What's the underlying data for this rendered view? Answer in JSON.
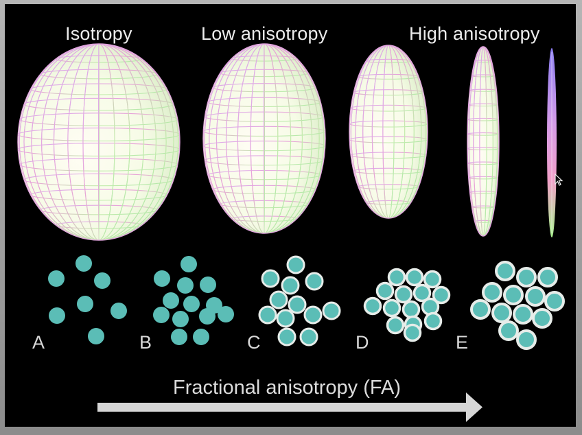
{
  "headings": {
    "isotropy": "Isotropy",
    "low": "Low anisotropy",
    "high": "High anisotropy"
  },
  "panels": [
    {
      "letter": "A"
    },
    {
      "letter": "B"
    },
    {
      "letter": "C"
    },
    {
      "letter": "D"
    },
    {
      "letter": "E"
    }
  ],
  "axis_label": "Fractional anisotropy (FA)",
  "colors": {
    "background": "#000000",
    "fiber_fill": "#5bbdb6",
    "myelin_ring": "#e6ece9",
    "arrow": "#d6d6d6",
    "mesh_pink": "#e79ad8",
    "mesh_green": "#c5f2a5"
  }
}
